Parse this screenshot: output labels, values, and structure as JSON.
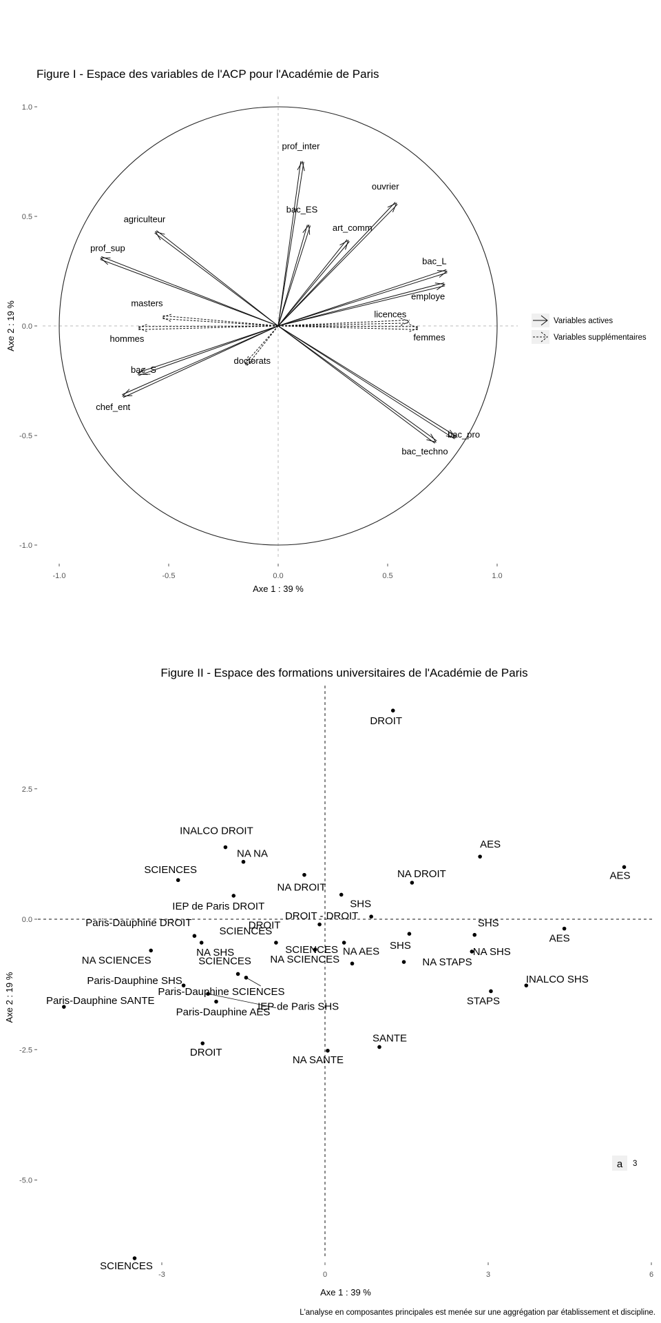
{
  "figure1": {
    "title": "Figure I - Espace des variables de l'ACP pour l'Académie de Paris",
    "chart_data": {
      "type": "scatter",
      "subtype": "correlation-circle",
      "title": "Figure I - Espace des variables de l'ACP pour l'Académie de Paris",
      "xlabel": "Axe 1 : 39 %",
      "ylabel": "Axe 2 : 19 %",
      "xlim": [
        -1.0,
        1.0
      ],
      "ylim": [
        -1.0,
        1.0
      ],
      "x_ticks": [
        "-1.0",
        "-0.5",
        "0.0",
        "0.5",
        "1.0"
      ],
      "y_ticks": [
        "1.0",
        "0.5",
        "0.0",
        "-0.5",
        "-1.0"
      ],
      "grid": false,
      "legend_position": "right",
      "legend": [
        {
          "label": "Variables actives",
          "style": "solid"
        },
        {
          "label": "Variables supplémentaires",
          "style": "dashed"
        }
      ],
      "vectors": [
        {
          "name": "prof_inter",
          "x": 0.11,
          "y": 0.75,
          "type": "active"
        },
        {
          "name": "bac_ES",
          "x": 0.14,
          "y": 0.46,
          "type": "active"
        },
        {
          "name": "art_comm",
          "x": 0.32,
          "y": 0.39,
          "type": "active"
        },
        {
          "name": "ouvrier",
          "x": 0.54,
          "y": 0.56,
          "type": "active"
        },
        {
          "name": "bac_L",
          "x": 0.77,
          "y": 0.25,
          "type": "active"
        },
        {
          "name": "employe",
          "x": 0.76,
          "y": 0.19,
          "type": "active"
        },
        {
          "name": "agriculteur",
          "x": -0.56,
          "y": 0.43,
          "type": "active"
        },
        {
          "name": "prof_sup",
          "x": -0.81,
          "y": 0.31,
          "type": "active"
        },
        {
          "name": "bac_S",
          "x": -0.64,
          "y": -0.22,
          "type": "active"
        },
        {
          "name": "chef_ent",
          "x": -0.71,
          "y": -0.32,
          "type": "active"
        },
        {
          "name": "bac_pro",
          "x": 0.81,
          "y": -0.51,
          "type": "active"
        },
        {
          "name": "bac_techno",
          "x": 0.72,
          "y": -0.53,
          "type": "active"
        },
        {
          "name": "masters",
          "x": -0.53,
          "y": 0.04,
          "type": "supplementary"
        },
        {
          "name": "hommes",
          "x": -0.64,
          "y": -0.01,
          "type": "supplementary"
        },
        {
          "name": "doctorats",
          "x": -0.15,
          "y": -0.18,
          "type": "supplementary"
        },
        {
          "name": "licences",
          "x": 0.6,
          "y": 0.02,
          "type": "supplementary"
        },
        {
          "name": "femmes",
          "x": 0.64,
          "y": -0.01,
          "type": "supplementary"
        }
      ]
    }
  },
  "figure2": {
    "title": "Figure II - Espace des formations universitaires de l'Académie de Paris",
    "chart_data": {
      "type": "scatter",
      "title": "Figure II - Espace des formations universitaires de l'Académie de Paris",
      "xlabel": "Axe 1 : 39 %",
      "ylabel": "Axe 2 : 19 %",
      "xlim": [
        -5.4,
        6.1
      ],
      "ylim": [
        -7.8,
        4.8
      ],
      "x_ticks": [
        "-3",
        "0",
        "3",
        "6"
      ],
      "y_ticks": [
        "2.5",
        "0.0",
        "-2.5",
        "-5.0"
      ],
      "grid": false,
      "legend_position": "right",
      "legend": [
        {
          "key": "a",
          "label": "3"
        }
      ],
      "points": [
        {
          "label": "DROIT",
          "x": 1.25,
          "y": 4.0
        },
        {
          "label": "INALCO DROIT",
          "x": -1.83,
          "y": 1.38
        },
        {
          "label": "NA NA",
          "x": -1.5,
          "y": 1.1
        },
        {
          "label": "SCIENCES",
          "x": -2.7,
          "y": 0.75
        },
        {
          "label": "NA DROIT",
          "x": -0.38,
          "y": 0.85
        },
        {
          "label": "AES",
          "x": 2.85,
          "y": 1.2
        },
        {
          "label": "AES",
          "x": 5.5,
          "y": 1.0
        },
        {
          "label": "NA DROIT",
          "x": 1.6,
          "y": 0.7
        },
        {
          "label": "SHS",
          "x": 0.3,
          "y": 0.47
        },
        {
          "label": "IEP de Paris DROIT",
          "x": -1.68,
          "y": 0.45
        },
        {
          "label": "DROIT - DROIT",
          "x": 0.85,
          "y": 0.05
        },
        {
          "label": "SHS",
          "x": 2.75,
          "y": -0.3
        },
        {
          "label": "AES",
          "x": 4.4,
          "y": -0.18
        },
        {
          "label": "Paris-Dauphine DROIT",
          "x": -2.4,
          "y": -0.32
        },
        {
          "label": "SCIENCES",
          "x": -0.9,
          "y": -0.45
        },
        {
          "label": "DROIT",
          "x": -0.1,
          "y": -0.1
        },
        {
          "label": "SHS",
          "x": 1.55,
          "y": -0.28
        },
        {
          "label": "SCIENCES",
          "x": 0.35,
          "y": -0.45
        },
        {
          "label": "NA SCIENCES",
          "x": -0.18,
          "y": -0.58
        },
        {
          "label": "NA SHS",
          "x": -2.27,
          "y": -0.45
        },
        {
          "label": "NA SCIENCES",
          "x": -3.2,
          "y": -0.6
        },
        {
          "label": "NA STAPS",
          "x": 1.45,
          "y": -0.82
        },
        {
          "label": "NA SHS",
          "x": 2.7,
          "y": -0.62
        },
        {
          "label": "Paris-Dauphine SHS",
          "x": -2.6,
          "y": -1.27
        },
        {
          "label": "SCIENCES",
          "x": -1.6,
          "y": -1.05
        },
        {
          "label": "Paris-Dauphine SCIENCES",
          "x": -1.45,
          "y": -1.12
        },
        {
          "label": "NA AES",
          "x": 0.5,
          "y": -0.85
        },
        {
          "label": "INALCO SHS",
          "x": 3.7,
          "y": -1.27
        },
        {
          "label": "Paris-Dauphine SANTE",
          "x": -4.8,
          "y": -1.68
        },
        {
          "label": "Paris-Dauphine AES",
          "x": -2.0,
          "y": -1.58
        },
        {
          "label": "IEP de Paris SHS",
          "x": -2.15,
          "y": -1.43
        },
        {
          "label": "STAPS",
          "x": 3.05,
          "y": -1.38
        },
        {
          "label": "SANTE",
          "x": 1.0,
          "y": -2.45
        },
        {
          "label": "DROIT",
          "x": -2.25,
          "y": -2.38
        },
        {
          "label": "NA SANTE",
          "x": 0.05,
          "y": -2.52
        },
        {
          "label": "SCIENCES",
          "x": -3.5,
          "y": -6.5
        }
      ]
    }
  },
  "footnote": "L'analyse en composantes principales est menée sur une aggrégation par établissement et discipline."
}
